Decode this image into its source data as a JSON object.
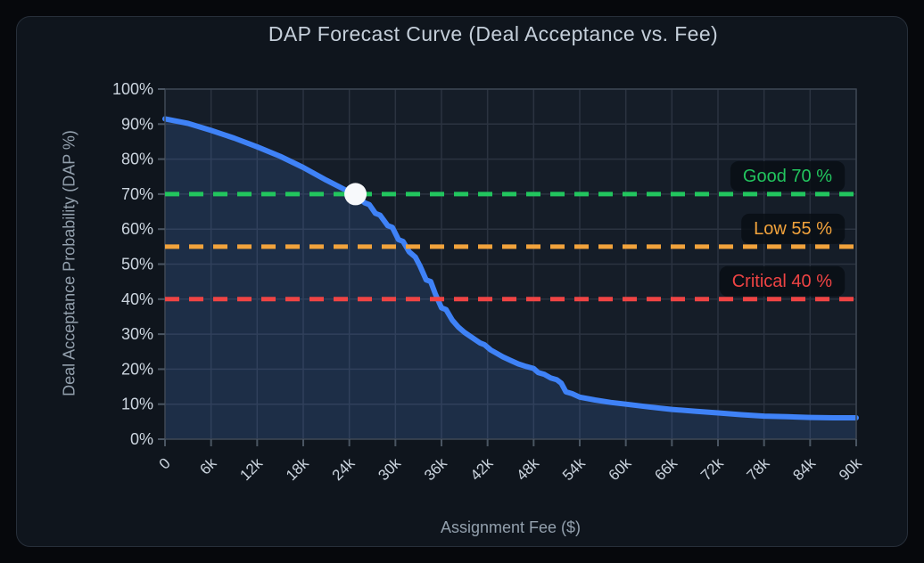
{
  "page": {
    "background": "#06080c"
  },
  "card": {
    "background": "#0f151d",
    "border_color": "#272f3a"
  },
  "colors": {
    "title": "#c5cfda",
    "axis_title": "#93a0ad",
    "tick_label": "#ccd5df",
    "gridline": "#2b3340",
    "axis_line": "#3b4551",
    "tick_mark": "#4a5562",
    "plot_bg": "#151d28",
    "pill_bg": "rgba(9,14,19,0.82)"
  },
  "chart_data": {
    "type": "area",
    "title": "DAP Forecast Curve (Deal Acceptance vs. Fee)",
    "xlabel": "Assignment Fee ($)",
    "ylabel": "Deal Acceptance Probability (DAP %)",
    "xlim": [
      0,
      90000
    ],
    "ylim": [
      0,
      100
    ],
    "grid": true,
    "legend": "none",
    "x_ticks": {
      "values": [
        0,
        6000,
        12000,
        18000,
        24000,
        30000,
        36000,
        42000,
        48000,
        54000,
        60000,
        66000,
        72000,
        78000,
        84000,
        90000
      ],
      "labels": [
        "0",
        "6k",
        "12k",
        "18k",
        "24k",
        "30k",
        "36k",
        "42k",
        "48k",
        "54k",
        "60k",
        "66k",
        "72k",
        "78k",
        "84k",
        "90k"
      ]
    },
    "y_ticks": {
      "values": [
        0,
        10,
        20,
        30,
        40,
        50,
        60,
        70,
        80,
        90,
        100
      ],
      "labels": [
        "0%",
        "10%",
        "20%",
        "30%",
        "40%",
        "50%",
        "60%",
        "70%",
        "80%",
        "90%",
        "100%"
      ]
    },
    "series": [
      {
        "name": "DAP forecast curve",
        "color": "#3f82f7",
        "fill": "rgba(76,134,235,0.16)",
        "x": [
          0,
          3000,
          6000,
          9000,
          12000,
          15000,
          18000,
          21000,
          24000,
          24800,
          26000,
          26600,
          27400,
          28000,
          29000,
          29600,
          30400,
          31000,
          31800,
          32600,
          33200,
          34000,
          34600,
          35200,
          36000,
          36600,
          37400,
          38200,
          39000,
          40000,
          41000,
          41600,
          42400,
          43200,
          44000,
          45000,
          46000,
          47000,
          48000,
          48600,
          49400,
          50200,
          51000,
          51600,
          52200,
          53000,
          54000,
          56000,
          58000,
          60000,
          63000,
          66000,
          69000,
          72000,
          75000,
          78000,
          81000,
          84000,
          87000,
          90000
        ],
        "y": [
          91.5,
          90.2,
          88.2,
          86.0,
          83.5,
          80.8,
          77.6,
          74.0,
          70.6,
          70.0,
          67.5,
          67.0,
          64.5,
          64.0,
          61.0,
          60.5,
          57.0,
          56.5,
          53.5,
          52.0,
          49.5,
          45.5,
          45.0,
          41.5,
          37.5,
          37.0,
          34.0,
          32.0,
          30.5,
          29.0,
          27.5,
          27.0,
          25.5,
          24.5,
          23.5,
          22.5,
          21.5,
          20.8,
          20.2,
          19.0,
          18.5,
          17.5,
          17.0,
          16.0,
          13.5,
          13.0,
          12.0,
          11.2,
          10.5,
          10.0,
          9.2,
          8.5,
          8.0,
          7.5,
          7.0,
          6.6,
          6.4,
          6.2,
          6.1,
          6.1
        ]
      }
    ],
    "thresholds": [
      {
        "name": "good",
        "label": "Good 70 %",
        "value": 70,
        "color": "#22c55e"
      },
      {
        "name": "low",
        "label": "Low 55 %",
        "value": 55,
        "color": "#f2a33c"
      },
      {
        "name": "critical",
        "label": "Critical 40 %",
        "value": 40,
        "color": "#ef4444"
      }
    ],
    "marker": {
      "x": 24800,
      "y": 70,
      "color": "#f7f9fb"
    }
  }
}
